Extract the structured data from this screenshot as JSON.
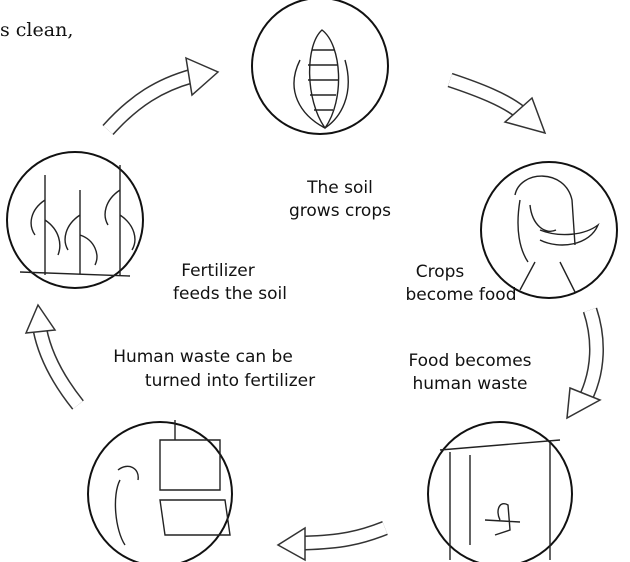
{
  "header": {
    "fragment": "s clean,"
  },
  "nodes": [
    {
      "label": [
        "The soil",
        "grows crops"
      ]
    },
    {
      "label": [
        "Crops",
        "become food"
      ]
    },
    {
      "label": [
        "Food becomes",
        "human waste"
      ]
    },
    {
      "label": [
        "Human waste can be",
        "turned into fertilizer"
      ]
    },
    {
      "label": [
        "Fertilizer",
        "feeds the soil"
      ]
    }
  ]
}
